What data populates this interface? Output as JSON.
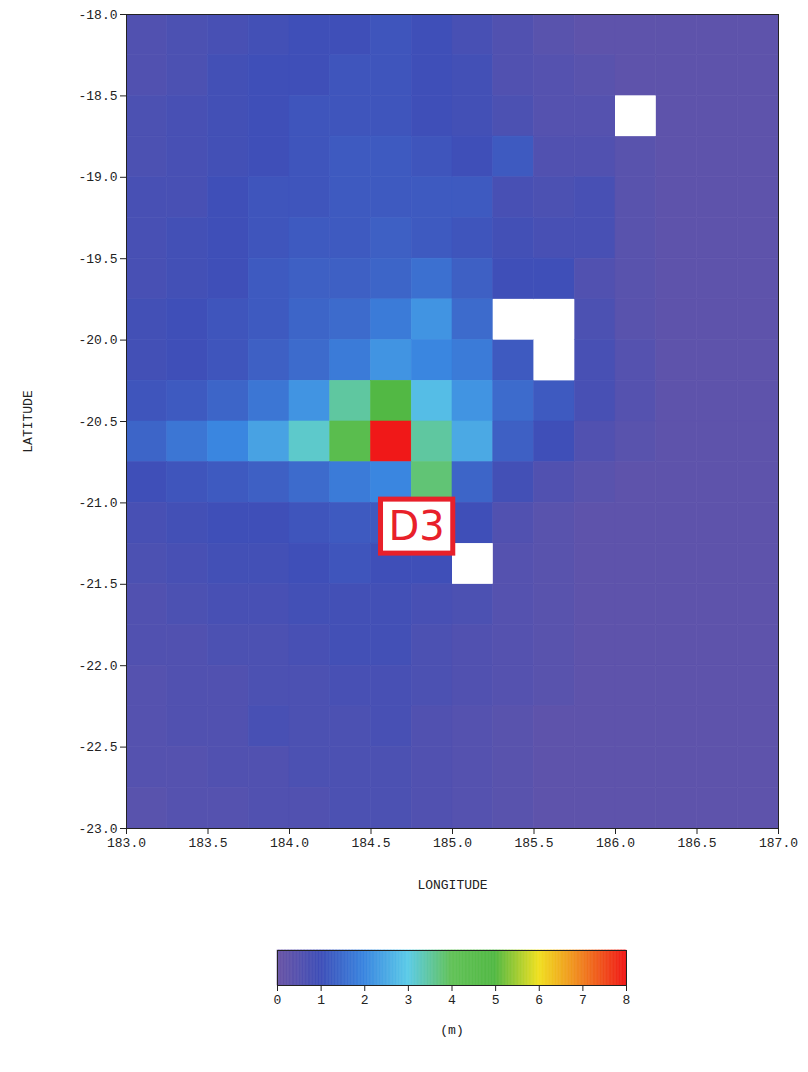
{
  "chart_data": {
    "type": "heatmap",
    "xlabel": "LONGITUDE",
    "ylabel": "LATITUDE",
    "xlim": [
      183,
      187
    ],
    "ylim": [
      -23,
      -18
    ],
    "xticks": [
      {
        "value": 183,
        "label": "183.0"
      },
      {
        "value": 183.5,
        "label": "183.5"
      },
      {
        "value": 184,
        "label": "184.0"
      },
      {
        "value": 184.5,
        "label": "184.5"
      },
      {
        "value": 185,
        "label": "185.0"
      },
      {
        "value": 185.5,
        "label": "185.5"
      },
      {
        "value": 186,
        "label": "186.0"
      },
      {
        "value": 186.5,
        "label": "186.5"
      },
      {
        "value": 187,
        "label": "187.0"
      }
    ],
    "yticks": [
      {
        "value": -23,
        "label": "-23.0"
      },
      {
        "value": -22.5,
        "label": "-22.5"
      },
      {
        "value": -22,
        "label": "-22.0"
      },
      {
        "value": -21.5,
        "label": "-21.5"
      },
      {
        "value": -21,
        "label": "-21.0"
      },
      {
        "value": -20.5,
        "label": "-20.5"
      },
      {
        "value": -20,
        "label": "-20.0"
      },
      {
        "value": -19.5,
        "label": "-19.5"
      },
      {
        "value": -19,
        "label": "-19.0"
      },
      {
        "value": -18.5,
        "label": "-18.5"
      },
      {
        "value": -18,
        "label": "-18.0"
      }
    ],
    "lon": [
      183.125,
      183.375,
      183.625,
      183.875,
      184.125,
      184.375,
      184.625,
      184.875,
      185.125,
      185.375,
      185.625,
      185.875,
      186.125,
      186.375,
      186.625,
      186.875
    ],
    "lat": [
      -18.125,
      -18.375,
      -18.625,
      -18.875,
      -19.125,
      -19.375,
      -19.625,
      -19.875,
      -20.125,
      -20.375,
      -20.625,
      -20.875,
      -21.125,
      -21.375,
      -21.625,
      -21.875,
      -22.125,
      -22.375,
      -22.625,
      -22.875
    ],
    "cells": [
      [
        0.6,
        0.7,
        0.8,
        0.9,
        1.0,
        1.0,
        1.1,
        1.0,
        0.8,
        0.6,
        0.4,
        0.3,
        0.3,
        0.3,
        0.3,
        0.3
      ],
      [
        0.6,
        0.7,
        0.9,
        1.0,
        1.0,
        1.1,
        1.1,
        1.0,
        0.9,
        0.6,
        0.5,
        0.4,
        0.3,
        0.3,
        0.3,
        0.3
      ],
      [
        0.7,
        0.8,
        0.9,
        1.0,
        1.1,
        1.1,
        1.1,
        1.0,
        0.9,
        0.7,
        0.5,
        0.5,
        null,
        0.3,
        0.3,
        0.3
      ],
      [
        0.7,
        0.8,
        0.9,
        1.0,
        1.1,
        1.2,
        1.2,
        1.1,
        1.0,
        1.2,
        0.6,
        0.6,
        0.4,
        0.3,
        0.3,
        0.3
      ],
      [
        0.8,
        0.8,
        1.0,
        1.1,
        1.1,
        1.2,
        1.2,
        1.2,
        1.2,
        0.8,
        0.7,
        0.8,
        0.4,
        0.3,
        0.3,
        0.3
      ],
      [
        0.8,
        0.9,
        1.0,
        1.1,
        1.2,
        1.2,
        1.3,
        1.2,
        1.1,
        0.9,
        0.8,
        0.8,
        0.4,
        0.3,
        0.3,
        0.3
      ],
      [
        0.8,
        0.9,
        1.0,
        1.2,
        1.3,
        1.3,
        1.4,
        1.6,
        1.3,
        1.0,
        1.0,
        0.6,
        0.4,
        0.3,
        0.3,
        0.3
      ],
      [
        0.9,
        1.0,
        1.1,
        1.2,
        1.4,
        1.5,
        1.8,
        2.2,
        1.5,
        null,
        null,
        0.7,
        0.4,
        0.3,
        0.3,
        0.3
      ],
      [
        0.9,
        1.0,
        1.1,
        1.3,
        1.5,
        1.8,
        2.2,
        2.0,
        1.8,
        1.2,
        null,
        0.8,
        0.5,
        0.3,
        0.3,
        0.3
      ],
      [
        1.1,
        1.2,
        1.4,
        1.7,
        2.2,
        3.5,
        5.0,
        2.8,
        2.2,
        1.5,
        1.2,
        0.8,
        0.5,
        0.3,
        0.3,
        0.3
      ],
      [
        1.4,
        1.7,
        2.0,
        2.4,
        3.2,
        4.5,
        8.0,
        3.5,
        2.5,
        1.3,
        1.0,
        0.6,
        0.4,
        0.3,
        0.3,
        0.3
      ],
      [
        1.0,
        1.1,
        1.2,
        1.3,
        1.5,
        1.8,
        2.0,
        3.8,
        1.4,
        0.9,
        0.6,
        0.4,
        0.3,
        0.3,
        0.3,
        0.3
      ],
      [
        0.8,
        0.9,
        1.0,
        1.0,
        1.1,
        1.2,
        1.2,
        1.3,
        1.0,
        0.6,
        0.4,
        0.3,
        0.3,
        0.3,
        0.3,
        0.3
      ],
      [
        0.7,
        0.8,
        0.9,
        0.9,
        1.0,
        1.1,
        1.0,
        1.0,
        null,
        0.5,
        0.4,
        0.3,
        0.3,
        0.3,
        0.3,
        0.3
      ],
      [
        0.6,
        0.7,
        0.8,
        0.8,
        0.9,
        0.9,
        0.9,
        0.8,
        0.7,
        0.5,
        0.4,
        0.3,
        0.3,
        0.3,
        0.3,
        0.3
      ],
      [
        0.6,
        0.6,
        0.7,
        0.7,
        0.8,
        0.9,
        0.9,
        0.7,
        0.6,
        0.5,
        0.4,
        0.3,
        0.3,
        0.3,
        0.3,
        0.3
      ],
      [
        0.5,
        0.6,
        0.6,
        0.7,
        0.7,
        0.8,
        0.8,
        0.7,
        0.6,
        0.5,
        0.4,
        0.3,
        0.3,
        0.3,
        0.3,
        0.3
      ],
      [
        0.5,
        0.6,
        0.6,
        0.8,
        0.7,
        0.7,
        0.8,
        0.6,
        0.5,
        0.4,
        0.3,
        0.3,
        0.3,
        0.3,
        0.3,
        0.3
      ],
      [
        0.5,
        0.5,
        0.6,
        0.6,
        0.7,
        0.7,
        0.7,
        0.6,
        0.5,
        0.4,
        0.3,
        0.3,
        0.3,
        0.3,
        0.3,
        0.3
      ],
      [
        0.4,
        0.5,
        0.5,
        0.6,
        0.6,
        0.7,
        0.7,
        0.6,
        0.5,
        0.4,
        0.3,
        0.3,
        0.3,
        0.3,
        0.3,
        0.3
      ]
    ],
    "colorbar": {
      "label": "(m)",
      "range": [
        0,
        8
      ],
      "ticks": [
        0,
        1,
        2,
        3,
        4,
        5,
        6,
        7,
        8
      ],
      "colors": [
        "#6b55a5",
        "#3f4fb8",
        "#3a86e0",
        "#5ccbe8",
        "#62c258",
        "#52b844",
        "#f0e020",
        "#f08020",
        "#f01818"
      ]
    },
    "annotations": [
      {
        "text": "D3",
        "x": 184.78,
        "y": -21.15
      }
    ]
  }
}
